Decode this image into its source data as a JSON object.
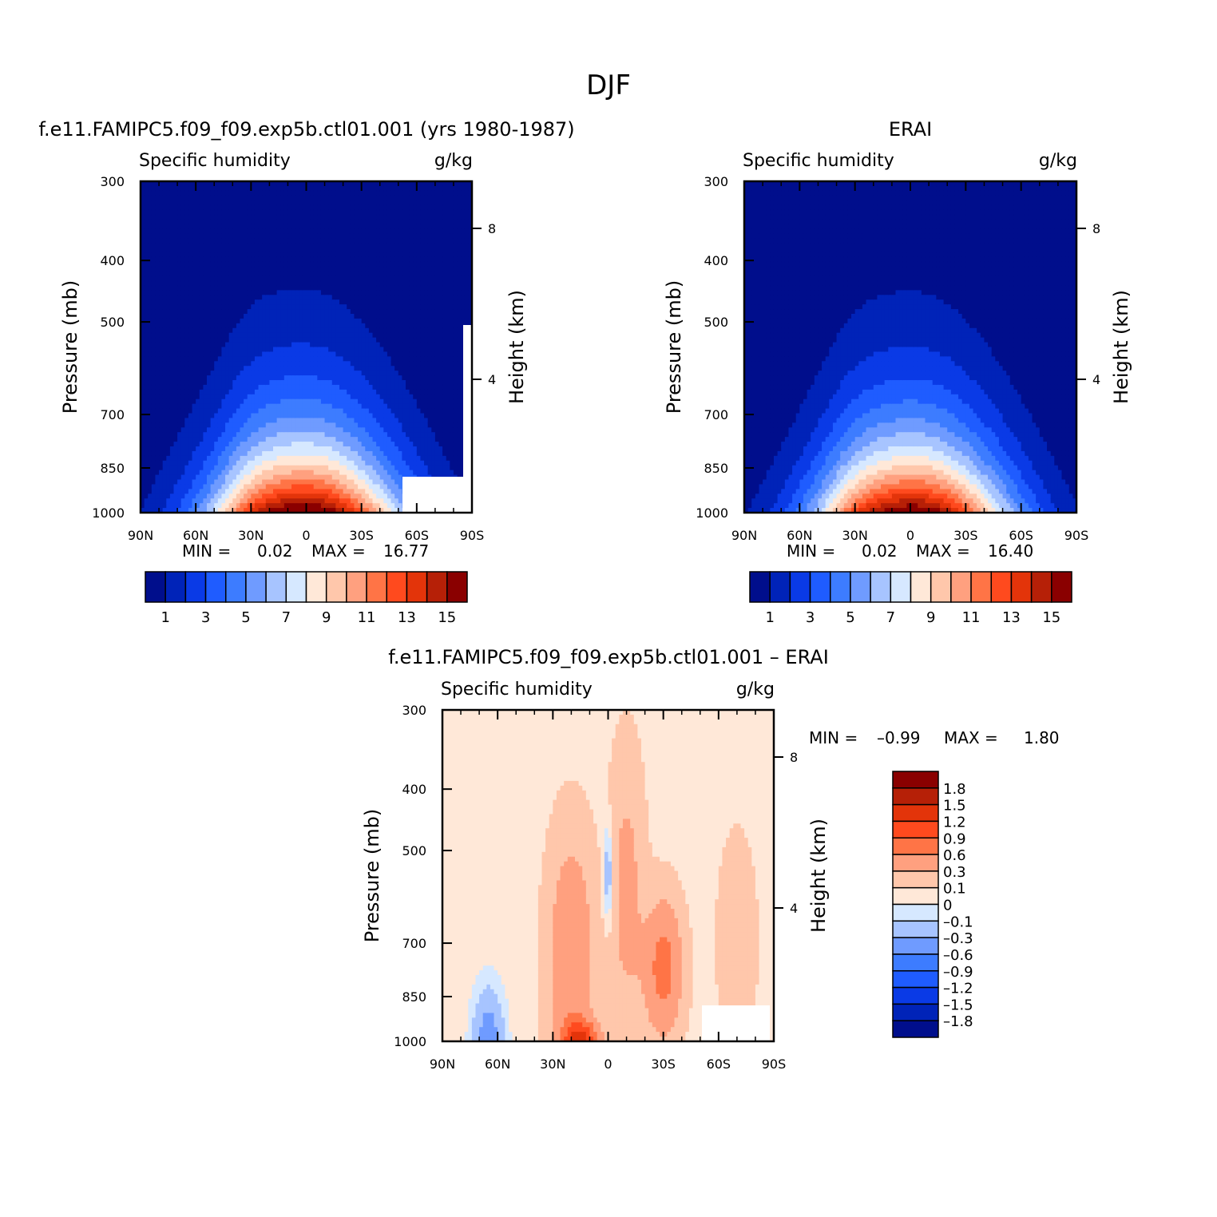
{
  "page_title": "DJF",
  "colors": {
    "abs_levels": [
      "#000e8c",
      "#0023b8",
      "#0a3ae6",
      "#1f5cff",
      "#3d7cff",
      "#6f9bff",
      "#a7c4ff",
      "#d6e8ff",
      "#ffe8d8",
      "#ffc7ab",
      "#ffa07f",
      "#ff7446",
      "#ff4a1e",
      "#e3340a",
      "#b62007",
      "#8a0000"
    ],
    "diff_levels": [
      "#000e8c",
      "#0023b8",
      "#0a3ae6",
      "#1f5cff",
      "#3d7cff",
      "#6f9bff",
      "#a7c4ff",
      "#d6e8ff",
      "#ffe8d8",
      "#ffc7ab",
      "#ffa07f",
      "#ff7446",
      "#ff4a1e",
      "#e3340a",
      "#b62007",
      "#8a0000"
    ]
  },
  "chart_data": [
    {
      "type": "heatmap",
      "panel_title": "f.e11.FAMIPC5.f09_f09.exp5b.ctl01.001 (yrs 1980-1987)",
      "left_label": "Specific humidity",
      "right_label": "g/kg",
      "ylabel": "Pressure (mb)",
      "ylabel_right": "Height (km)",
      "x_ticks": [
        "90N",
        "60N",
        "30N",
        "0",
        "30S",
        "60S",
        "90S"
      ],
      "x_values": [
        90,
        60,
        30,
        0,
        -30,
        -60,
        -90
      ],
      "y_ticks": [
        "300",
        "400",
        "500",
        "700",
        "850",
        "1000"
      ],
      "y_values": [
        300,
        400,
        500,
        700,
        850,
        1000
      ],
      "y_right_ticks": [
        "8",
        "4"
      ],
      "ylim": [
        1000,
        300
      ],
      "xlim": [
        90,
        -90
      ],
      "min_label": "MIN =",
      "min_value": "0.02",
      "max_label": "MAX =",
      "max_value": "16.77",
      "colorbar_labels": [
        "1",
        "3",
        "5",
        "7",
        "9",
        "11",
        "13",
        "15"
      ],
      "levels": [
        1,
        2,
        3,
        4,
        5,
        6,
        7,
        8,
        9,
        10,
        11,
        12,
        13,
        14,
        15
      ],
      "peak_latitude": 0,
      "peak_value": 16.77
    },
    {
      "type": "heatmap",
      "panel_title": "ERAI",
      "left_label": "Specific humidity",
      "right_label": "g/kg",
      "ylabel": "Pressure (mb)",
      "ylabel_right": "Height (km)",
      "x_ticks": [
        "90N",
        "60N",
        "30N",
        "0",
        "30S",
        "60S",
        "90S"
      ],
      "x_values": [
        90,
        60,
        30,
        0,
        -30,
        -60,
        -90
      ],
      "y_ticks": [
        "300",
        "400",
        "500",
        "700",
        "850",
        "1000"
      ],
      "y_values": [
        300,
        400,
        500,
        700,
        850,
        1000
      ],
      "y_right_ticks": [
        "8",
        "4"
      ],
      "ylim": [
        1000,
        300
      ],
      "xlim": [
        90,
        -90
      ],
      "min_label": "MIN =",
      "min_value": "0.02",
      "max_label": "MAX =",
      "max_value": "16.40",
      "colorbar_labels": [
        "1",
        "3",
        "5",
        "7",
        "9",
        "11",
        "13",
        "15"
      ],
      "levels": [
        1,
        2,
        3,
        4,
        5,
        6,
        7,
        8,
        9,
        10,
        11,
        12,
        13,
        14,
        15
      ],
      "peak_latitude": -2,
      "peak_value": 16.4
    },
    {
      "type": "heatmap",
      "panel_title": "f.e11.FAMIPC5.f09_f09.exp5b.ctl01.001 – ERAI",
      "left_label": "Specific humidity",
      "right_label": "g/kg",
      "ylabel": "Pressure (mb)",
      "ylabel_right": "Height (km)",
      "x_ticks": [
        "90N",
        "60N",
        "30N",
        "0",
        "30S",
        "60S",
        "90S"
      ],
      "x_values": [
        90,
        60,
        30,
        0,
        -30,
        -60,
        -90
      ],
      "y_ticks": [
        "300",
        "400",
        "500",
        "700",
        "850",
        "1000"
      ],
      "y_values": [
        300,
        400,
        500,
        700,
        850,
        1000
      ],
      "y_right_ticks": [
        "8",
        "4"
      ],
      "ylim": [
        1000,
        300
      ],
      "xlim": [
        90,
        -90
      ],
      "min_label": "MIN =",
      "min_value": "–0.99",
      "max_label": "MAX =",
      "max_value": "1.80",
      "colorbar_labels": [
        "1.8",
        "1.5",
        "1.2",
        "0.9",
        "0.6",
        "0.3",
        "0.1",
        "0",
        "–0.1",
        "–0.3",
        "–0.6",
        "–0.9",
        "–1.2",
        "–1.5",
        "–1.8"
      ],
      "levels": [
        -1.8,
        -1.5,
        -1.2,
        -0.9,
        -0.6,
        -0.3,
        -0.1,
        0,
        0.1,
        0.3,
        0.6,
        0.9,
        1.2,
        1.5,
        1.8
      ]
    }
  ]
}
